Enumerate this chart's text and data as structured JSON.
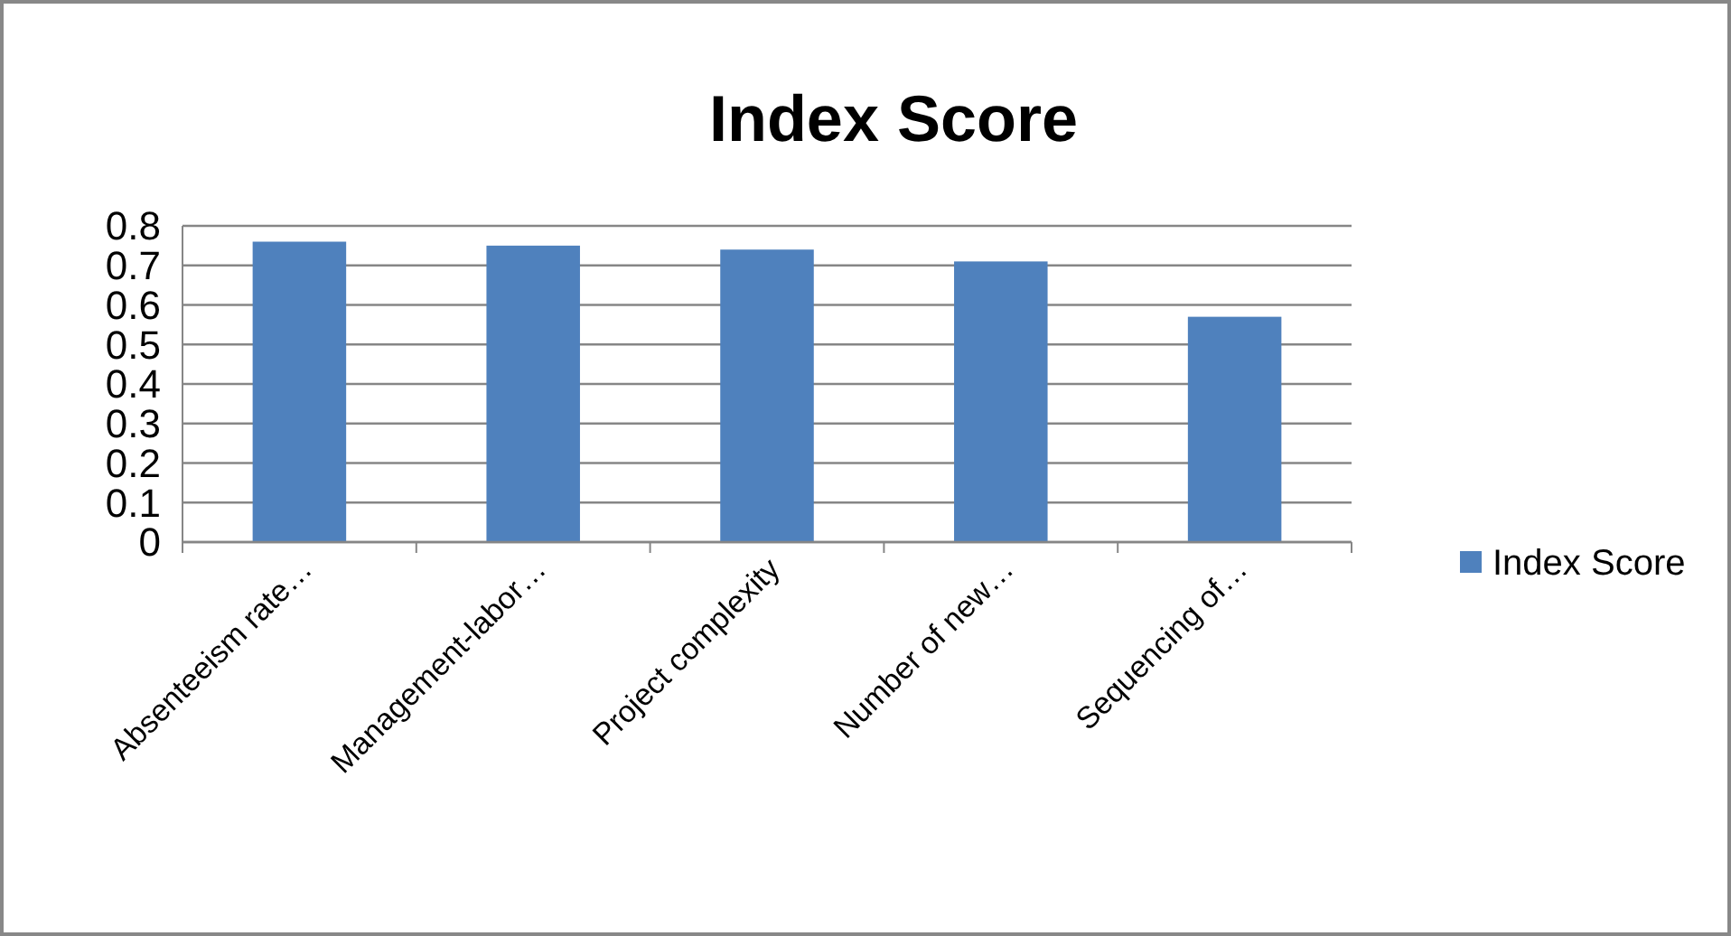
{
  "chart_data": {
    "type": "bar",
    "title": "Index Score",
    "categories": [
      "Absenteeism rate…",
      "Management-labor…",
      "Project complexity",
      "Number of new…",
      "Sequencing of…"
    ],
    "series": [
      {
        "name": "Index Score",
        "color": "#4f81bd",
        "values": [
          0.76,
          0.75,
          0.74,
          0.71,
          0.57
        ]
      }
    ],
    "ylim": [
      0,
      0.8
    ],
    "yticks": [
      0,
      0.1,
      0.2,
      0.3,
      0.4,
      0.5,
      0.6,
      0.7,
      0.8
    ],
    "grid": "y",
    "legend": "right"
  }
}
